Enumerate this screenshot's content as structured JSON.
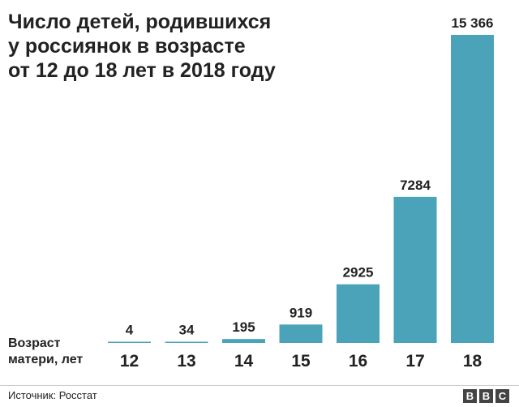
{
  "title_lines": [
    "Число детей, родившихся",
    "у россиянок в возрасте",
    "от 12 до 18 лет в 2018 году"
  ],
  "axis_title_lines": [
    "Возраст",
    "матери, лет"
  ],
  "source": "Источник: Росстат",
  "logo": [
    "B",
    "B",
    "C"
  ],
  "colors": {
    "bar": "#4aa3b8",
    "text": "#222222",
    "rule": "#cccccc",
    "logo": "#444444"
  },
  "chart_data": {
    "type": "bar",
    "title": "Число детей, родившихся у россиянок в возрасте от 12 до 18 лет в 2018 году",
    "xlabel": "Возраст матери, лет",
    "ylabel": "",
    "categories": [
      "12",
      "13",
      "14",
      "15",
      "16",
      "17",
      "18"
    ],
    "values": [
      4,
      34,
      195,
      919,
      2925,
      7284,
      15366
    ],
    "value_labels": [
      "4",
      "34",
      "195",
      "919",
      "2925",
      "7284",
      "15 366"
    ],
    "ylim": [
      0,
      15366
    ],
    "grid": false,
    "legend": "none"
  }
}
